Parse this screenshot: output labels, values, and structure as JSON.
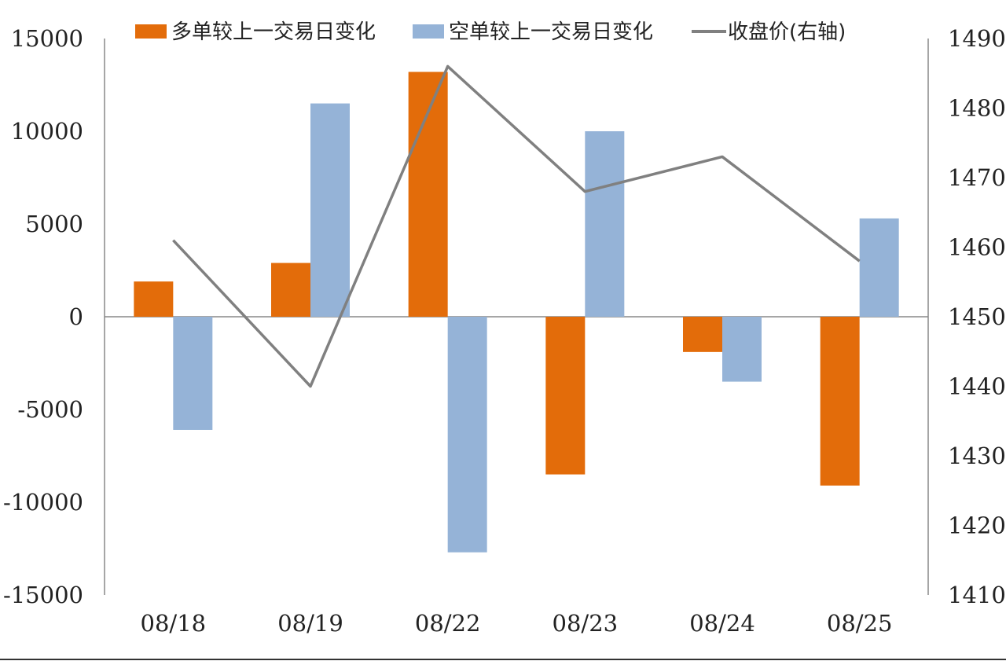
{
  "chart_data": {
    "type": "bar",
    "categories": [
      "08/18",
      "08/19",
      "08/22",
      "08/23",
      "08/24",
      "08/25"
    ],
    "series": [
      {
        "name": "多单较上一交易日变化",
        "type": "bar",
        "axis": "left",
        "color": "#E36C0A",
        "values": [
          1900,
          2900,
          13200,
          -8500,
          -1900,
          -9100
        ]
      },
      {
        "name": "空单较上一交易日变化",
        "type": "bar",
        "axis": "left",
        "color": "#95B3D7",
        "values": [
          -6100,
          11500,
          -12700,
          10000,
          -3500,
          5300
        ]
      },
      {
        "name": "收盘价(右轴)",
        "type": "line",
        "axis": "right",
        "color": "#808080",
        "values": [
          1461,
          1440,
          1486,
          1468,
          1473,
          1458
        ]
      }
    ],
    "yleft": {
      "lim": [
        -15000,
        15000
      ],
      "ticks": [
        "15000",
        "10000",
        "5000",
        "0",
        "-5000",
        "-10000",
        "-15000"
      ]
    },
    "yright": {
      "lim": [
        1410,
        1490
      ],
      "ticks": [
        "1490",
        "1480",
        "1470",
        "1460",
        "1450",
        "1440",
        "1430",
        "1420",
        "1410"
      ]
    },
    "legend_position": "top",
    "grid": false
  }
}
